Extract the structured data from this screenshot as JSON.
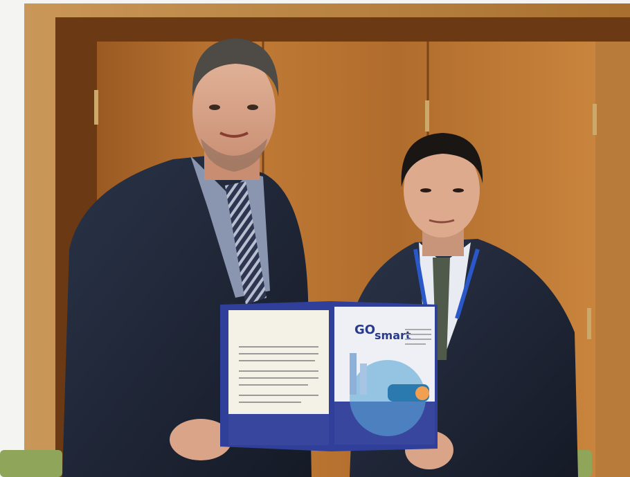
{
  "brochure": {
    "logo_go": "GO",
    "logo_smart": "smart"
  }
}
